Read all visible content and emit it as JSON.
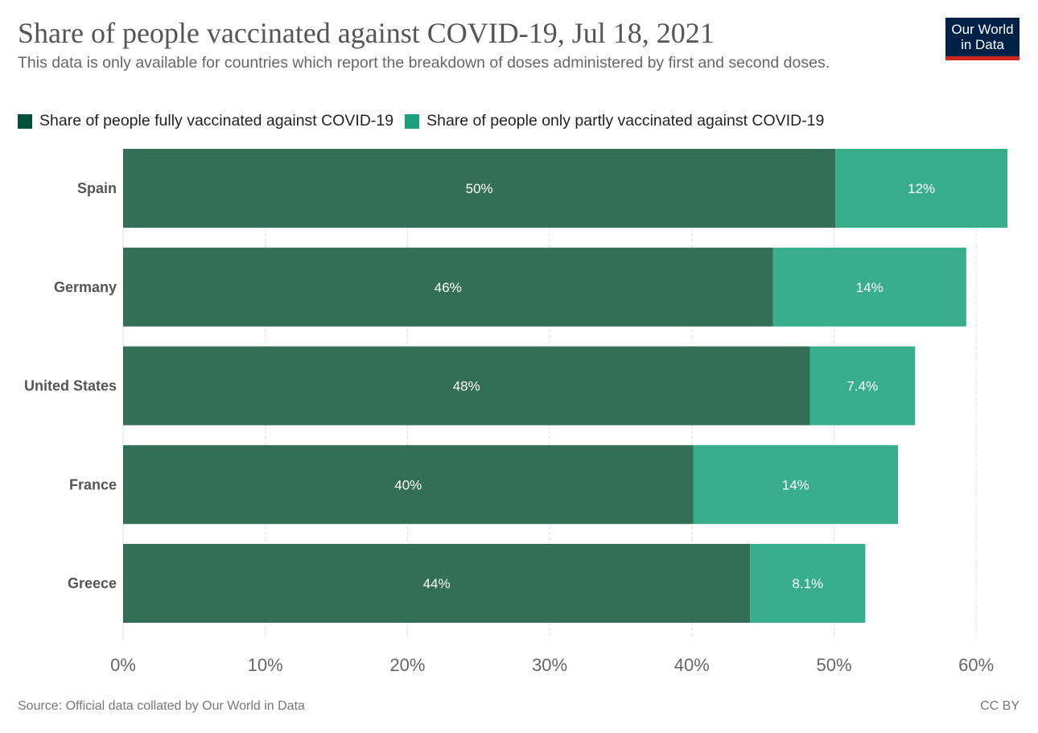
{
  "title": "Share of people vaccinated against COVID-19, Jul 18, 2021",
  "subtitle": "This data is only available for countries which report the breakdown of doses administered by first and second doses.",
  "logo": {
    "line1": "Our World",
    "line2": "in Data"
  },
  "source": "Source: Official data collated by Our World in Data",
  "license": "CC BY",
  "colors": {
    "full": "#2c6a52",
    "partial": "#33ab88",
    "legend_full": "#00513b",
    "legend_partial": "#18a07b"
  },
  "chart_data": {
    "type": "bar",
    "orientation": "horizontal-stacked",
    "title": "Share of people vaccinated against COVID-19, Jul 18, 2021",
    "categories": [
      "Spain",
      "Germany",
      "United States",
      "France",
      "Greece"
    ],
    "series": [
      {
        "name": "Share of people fully vaccinated against COVID-19",
        "values": [
          50.1,
          45.7,
          48.3,
          40.1,
          44.1
        ],
        "labels": [
          "50%",
          "46%",
          "48%",
          "40%",
          "44%"
        ]
      },
      {
        "name": "Share of people only partly vaccinated against COVID-19",
        "values": [
          12.1,
          13.6,
          7.4,
          14.4,
          8.1
        ],
        "labels": [
          "12%",
          "14%",
          "7.4%",
          "14%",
          "8.1%"
        ]
      }
    ],
    "xticks": [
      "0%",
      "10%",
      "20%",
      "30%",
      "40%",
      "50%",
      "60%"
    ],
    "xtick_values": [
      0,
      10,
      20,
      30,
      40,
      50,
      60
    ],
    "xlim": [
      0,
      62.2
    ],
    "grid": true,
    "legend_position": "top-left"
  }
}
